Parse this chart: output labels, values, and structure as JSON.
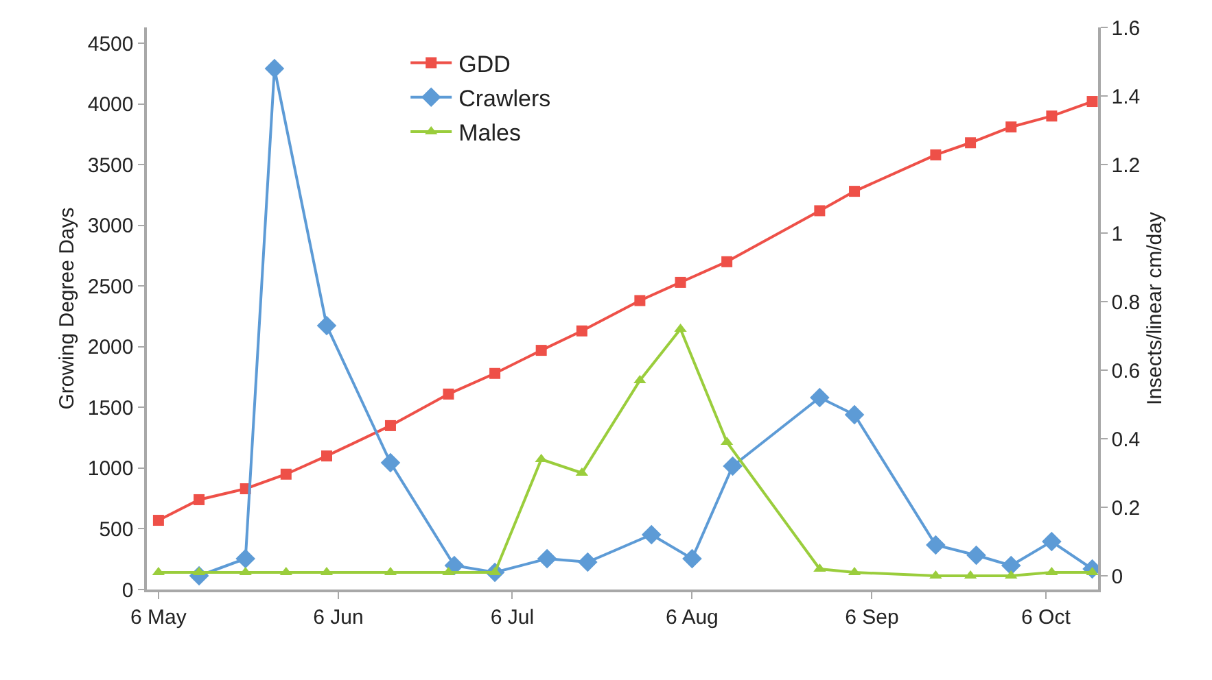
{
  "chart_data": {
    "type": "line",
    "xlabel": null,
    "ylabel": "Growing Degree Days",
    "y2label": "Insects/linear cm/day",
    "x": [
      "--05-06",
      "--05-13",
      "--05-21",
      "--05-28",
      "--06-04",
      "--06-15",
      "--06-25",
      "--07-03",
      "--07-11",
      "--07-18",
      "--07-28",
      "--08-04",
      "--08-12",
      "--08-28",
      "--09-03",
      "--09-17",
      "--09-23",
      "--09-30",
      "--10-07",
      "--10-14"
    ],
    "series": [
      {
        "name": "GDD",
        "color": "#ee5048",
        "marker": "square",
        "values": [
          570,
          740,
          830,
          950,
          1100,
          1350,
          1610,
          1780,
          1970,
          2130,
          2380,
          2530,
          2700,
          3120,
          3280,
          3580,
          3680,
          3810,
          3900,
          4020
        ]
      },
      {
        "name": "Crawlers",
        "color": "#5d9bd6",
        "marker": "diamond",
        "axis": "y2",
        "x": [
          "--05-13",
          "--05-21",
          "--05-26",
          "--06-04",
          "--06-15",
          "--06-26",
          "--07-03",
          "--07-12",
          "--07-19",
          "--07-30",
          "--08-06",
          "--08-13",
          "--08-28",
          "--09-03",
          "--09-17",
          "--09-24",
          "--09-30",
          "--10-07",
          "--10-14"
        ],
        "values": [
          0,
          0.05,
          1.48,
          0.73,
          0.33,
          0.03,
          0.01,
          0.05,
          0.04,
          0.12,
          0.05,
          0.32,
          0.52,
          0.47,
          0.09,
          0.06,
          0.03,
          0.1,
          0.02
        ]
      },
      {
        "name": "Males",
        "color": "#9acd3c",
        "marker": "triangle",
        "axis": "y2",
        "values": [
          0.01,
          0.01,
          0.01,
          0.01,
          0.01,
          0.01,
          0.01,
          0.01,
          0.34,
          0.3,
          0.57,
          0.72,
          0.39,
          0.02,
          0.01,
          0,
          0,
          0,
          0.01,
          0.01
        ]
      }
    ],
    "xlim": [
      "--05-04",
      "--10-15"
    ],
    "xticks": [
      {
        "value": "--05-06",
        "label": "6 May"
      },
      {
        "value": "--06-06",
        "label": "6 Jun"
      },
      {
        "value": "--07-06",
        "label": "6 Jul"
      },
      {
        "value": "--08-06",
        "label": "6 Aug"
      },
      {
        "value": "--09-06",
        "label": "6 Sep"
      },
      {
        "value": "--10-06",
        "label": "6 Oct"
      }
    ],
    "ylim": [
      0,
      4630
    ],
    "yticks": [
      0,
      500,
      1000,
      1500,
      2000,
      2500,
      3000,
      3500,
      4000,
      4500
    ],
    "y2lim": [
      -0.04,
      1.6
    ],
    "y2ticks": [
      0,
      0.2,
      0.4,
      0.6,
      0.8,
      1,
      1.2,
      1.4,
      1.6
    ],
    "legend": "top left",
    "line_style": "solid"
  }
}
